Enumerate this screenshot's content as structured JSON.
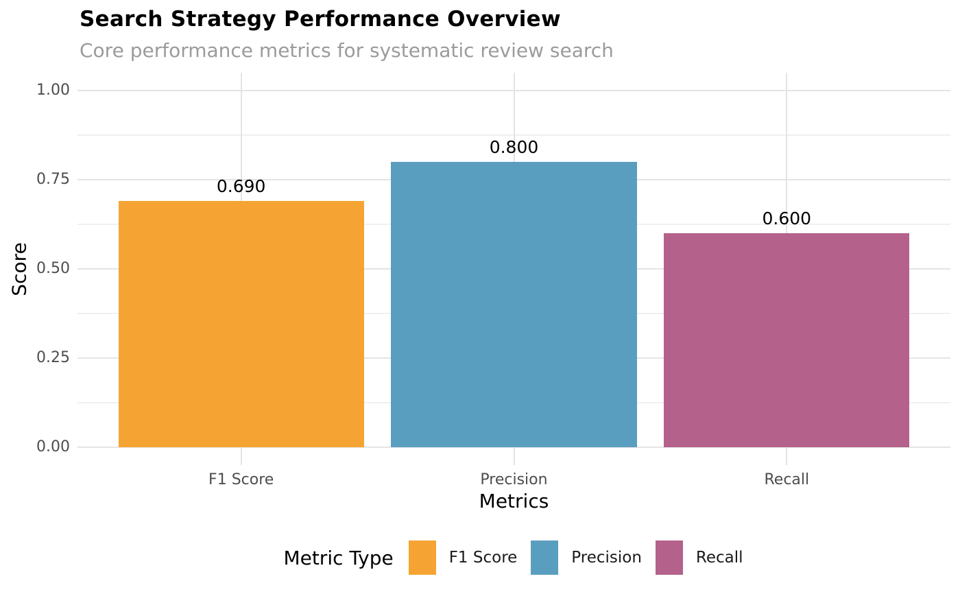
{
  "title": "Search Strategy Performance Overview",
  "subtitle": "Core performance metrics for systematic review search",
  "colors": {
    "background": "#FFFFFF",
    "grid_major": "#E4E4E4",
    "grid_minor": "#F0F0F0",
    "axis_text": "#4D4D4D",
    "axis_title": "#000000",
    "subtitle_text": "#9B9B9B",
    "value_label": "#000000",
    "bar_orange": "#F5A433",
    "bar_blue": "#5A9EBF",
    "bar_magenta": "#B4618C"
  },
  "chart_data": {
    "type": "bar",
    "title": "Search Strategy Performance Overview",
    "subtitle": "Core performance metrics for systematic review search",
    "categories": [
      "F1 Score",
      "Precision",
      "Recall"
    ],
    "values": [
      0.69,
      0.8,
      0.6
    ],
    "value_labels": [
      "0.690",
      "0.800",
      "0.600"
    ],
    "bar_colors": [
      "#F5A433",
      "#5A9EBF",
      "#B4618C"
    ],
    "xlabel": "Metrics",
    "ylabel": "Score",
    "ylim": [
      0,
      1
    ],
    "y_major_ticks": [
      0,
      0.25,
      0.5,
      0.75,
      1
    ],
    "y_tick_labels": [
      "0.00",
      "0.25",
      "0.50",
      "0.75",
      "1.00"
    ],
    "y_minor_ticks": [
      0.125,
      0.375,
      0.625,
      0.875
    ],
    "grid": "horizontal major+minor, vertical major at category centers",
    "legend_position": "bottom",
    "legend": {
      "title": "Metric Type",
      "entries": [
        {
          "label": "F1 Score",
          "color": "#F5A433"
        },
        {
          "label": "Precision",
          "color": "#5A9EBF"
        },
        {
          "label": "Recall",
          "color": "#B4618C"
        }
      ]
    }
  }
}
